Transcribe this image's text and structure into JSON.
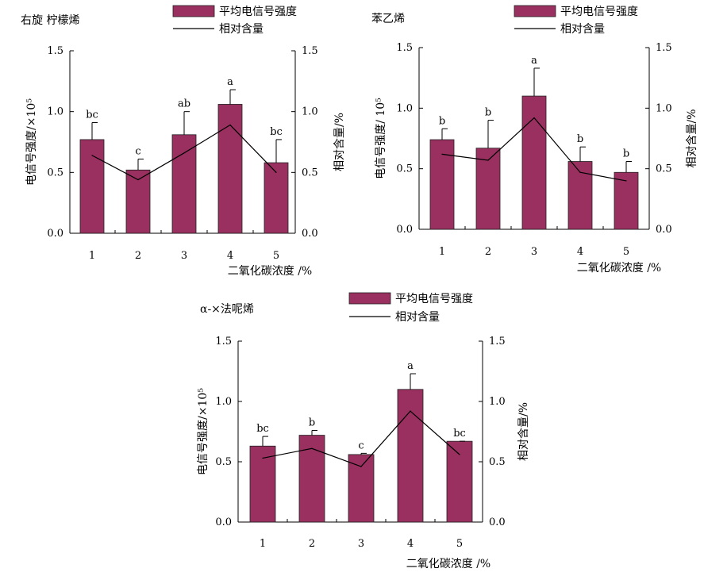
{
  "colors": {
    "bar_fill": "#99305F",
    "bar_stroke": "#222222",
    "line": "#000000",
    "axis": "#000000"
  },
  "legend": {
    "bar_label": "平均电信号强度",
    "line_label": "相对含量"
  },
  "chart_data": [
    {
      "type": "bar",
      "title": "右旋 柠檬烯",
      "categories": [
        "1",
        "2",
        "3",
        "4",
        "5"
      ],
      "series": [
        {
          "name": "平均电信号强度",
          "values": [
            0.77,
            0.52,
            0.81,
            1.06,
            0.58
          ],
          "errors": [
            0.14,
            0.09,
            0.19,
            0.12,
            0.19
          ],
          "significance": [
            "bc",
            "c",
            "ab",
            "a",
            "bc"
          ]
        },
        {
          "name": "相对含量",
          "type": "line",
          "axis": "right",
          "values": [
            0.64,
            0.44,
            0.66,
            0.89,
            0.5
          ]
        }
      ],
      "xlabel": "二氧化碳浓度 /%",
      "ylabel": "电信号强度/×10⁵",
      "y2label": "相对含量/%",
      "ylim": [
        0,
        1.5
      ],
      "y2lim": [
        0,
        1.5
      ],
      "yticks": [
        "0.0",
        "0.5",
        "1.0",
        "1.5"
      ],
      "y2ticks": [
        "0.0",
        "0.5",
        "1.0",
        "1.5"
      ]
    },
    {
      "type": "bar",
      "title": "苯乙烯",
      "categories": [
        "1",
        "2",
        "3",
        "4",
        "5"
      ],
      "series": [
        {
          "name": "平均电信号强度",
          "values": [
            0.74,
            0.67,
            1.1,
            0.56,
            0.47
          ],
          "errors": [
            0.09,
            0.23,
            0.23,
            0.12,
            0.09
          ],
          "significance": [
            "b",
            "b",
            "a",
            "b",
            "b"
          ]
        },
        {
          "name": "相对含量",
          "type": "line",
          "axis": "right",
          "values": [
            0.62,
            0.57,
            0.92,
            0.47,
            0.4
          ]
        }
      ],
      "xlabel": "二氧化碳浓度 /%",
      "ylabel": "电信号强度/ 10⁵",
      "y2label": "相对含量/%",
      "ylim": [
        0,
        1.5
      ],
      "y2lim": [
        0,
        1.5
      ],
      "yticks": [
        "0.0",
        "0.5",
        "1.0",
        "1.5"
      ],
      "y2ticks": [
        "0.0",
        "0.5",
        "1.0",
        "1.5"
      ]
    },
    {
      "type": "bar",
      "title": "α-×法呢烯",
      "categories": [
        "1",
        "2",
        "3",
        "4",
        "5"
      ],
      "series": [
        {
          "name": "平均电信号强度",
          "values": [
            0.63,
            0.72,
            0.56,
            1.1,
            0.67
          ],
          "errors": [
            0.08,
            0.04,
            0.01,
            0.13,
            0.0
          ],
          "significance": [
            "bc",
            "b",
            "c",
            "a",
            "bc"
          ]
        },
        {
          "name": "相对含量",
          "type": "line",
          "axis": "right",
          "values": [
            0.53,
            0.61,
            0.46,
            0.92,
            0.56
          ]
        }
      ],
      "xlabel": "二氧化碳浓度 /%",
      "ylabel": "电信号强度/×10⁵",
      "y2label": "相对含量/%",
      "ylim": [
        0,
        1.5
      ],
      "y2lim": [
        0,
        1.5
      ],
      "yticks": [
        "0.0",
        "0.5",
        "1.0",
        "1.5"
      ],
      "y2ticks": [
        "0.0",
        "0.5",
        "1.0",
        "1.5"
      ]
    }
  ]
}
